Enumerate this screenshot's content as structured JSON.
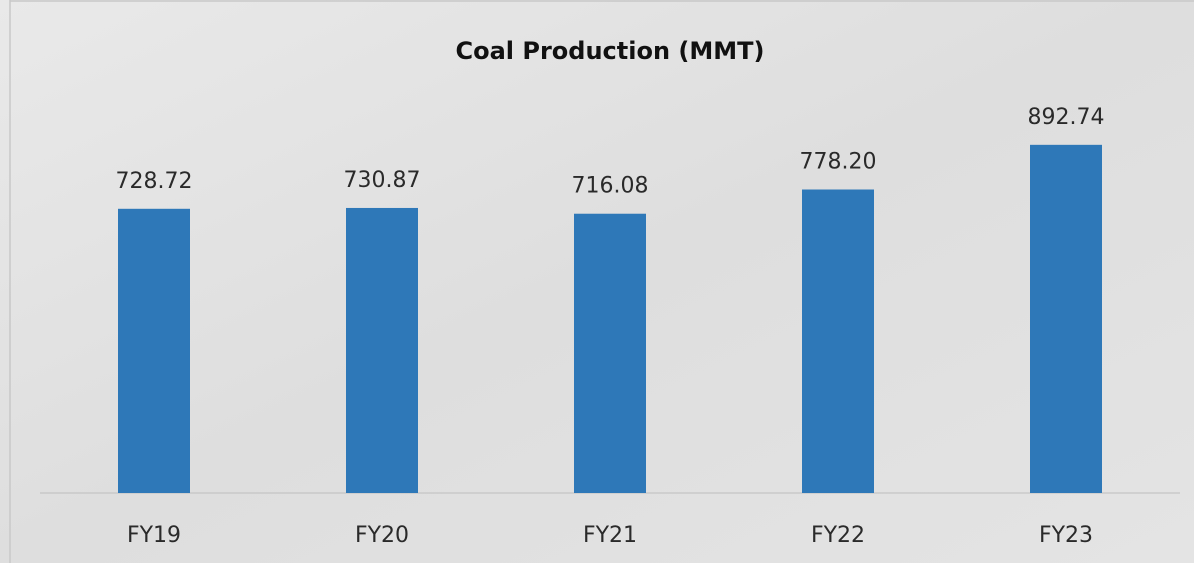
{
  "chart_data": {
    "type": "bar",
    "title": "Coal Production (MMT)",
    "categories": [
      "FY19",
      "FY20",
      "FY21",
      "FY22",
      "FY23"
    ],
    "values": [
      728.72,
      730.87,
      716.08,
      778.2,
      892.74
    ],
    "value_labels": [
      "728.72",
      "730.87",
      "716.08",
      "778.20",
      "892.74"
    ],
    "color": "#2e78b8",
    "ylim": [
      0,
      1000
    ]
  }
}
